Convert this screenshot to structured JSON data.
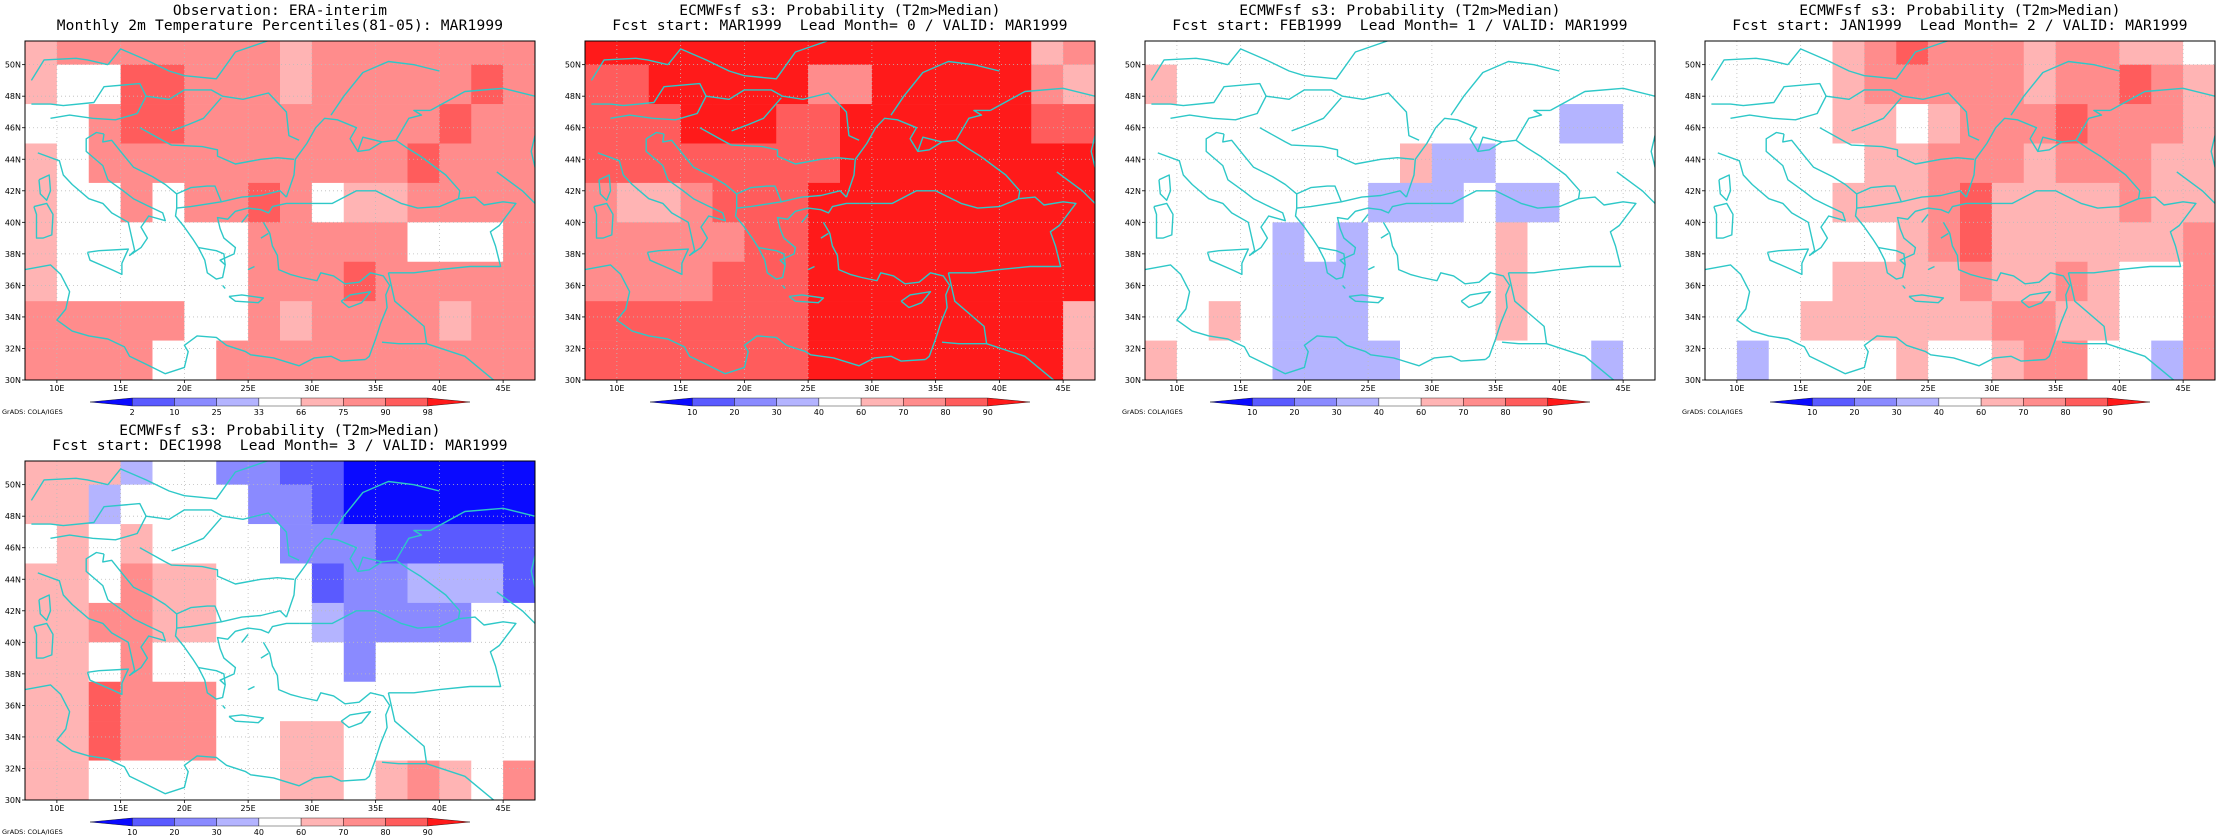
{
  "palette": {
    "coast": "#2ec8c8",
    "grid": "#bbbbbb",
    "prob_colors": [
      "#0a0aff",
      "#5a5aff",
      "#8a8aff",
      "#b4b4ff",
      "#ffffff",
      "#ffb4b4",
      "#ff8c8c",
      "#ff5c5c",
      "#ff1a1a"
    ],
    "pct_colors": [
      "#0a0aff",
      "#5a5aff",
      "#8a8aff",
      "#b4b4ff",
      "#ffffff",
      "#ffb4b4",
      "#ff8c8c",
      "#ff5c5c",
      "#ff1a1a"
    ]
  },
  "axes": {
    "lon_ticks": [
      "10E",
      "15E",
      "20E",
      "25E",
      "30E",
      "35E",
      "40E",
      "45E"
    ],
    "lat_ticks": [
      "30N",
      "32N",
      "34N",
      "36N",
      "38N",
      "40N",
      "42N",
      "44N",
      "46N",
      "48N",
      "50N"
    ]
  },
  "chart_data": [
    {
      "type": "heatmap",
      "title_line1": "Observation: ERA-interim",
      "title_line2": "Monthly 2m Temperature Percentiles(81-05): MAR1999",
      "credit": "GrADS: COLA/IGES",
      "colorbar_labels": [
        "2",
        "10",
        "25",
        "33",
        "66",
        "75",
        "90",
        "98"
      ],
      "colorbar": "pct",
      "x": [
        "8.75E",
        "11.25E",
        "13.75E",
        "16.25E",
        "18.75E",
        "21.25E",
        "23.75E",
        "26.25E",
        "28.75E",
        "31.25E",
        "33.75E",
        "36.25E",
        "38.75E",
        "41.25E",
        "43.75E",
        "46.25E"
      ],
      "y": [
        "51.25N",
        "48.75N",
        "46.25N",
        "43.75N",
        "41.25N",
        "38.75N",
        "36.25N",
        "33.75N",
        "31.25N"
      ],
      "values": [
        [
          5,
          6,
          6,
          6,
          6,
          6,
          6,
          6,
          5,
          6,
          6,
          6,
          6,
          6,
          6,
          6
        ],
        [
          5,
          4,
          4,
          7,
          7,
          6,
          6,
          6,
          5,
          6,
          6,
          6,
          6,
          6,
          7,
          6
        ],
        [
          4,
          4,
          6,
          7,
          7,
          6,
          6,
          6,
          6,
          6,
          6,
          6,
          6,
          7,
          6,
          6
        ],
        [
          5,
          4,
          6,
          6,
          6,
          6,
          6,
          6,
          6,
          6,
          6,
          6,
          7,
          6,
          6,
          6
        ],
        [
          5,
          4,
          4,
          6,
          4,
          6,
          6,
          7,
          6,
          4,
          5,
          5,
          6,
          6,
          6,
          6
        ],
        [
          5,
          4,
          4,
          4,
          4,
          4,
          4,
          6,
          6,
          6,
          6,
          6,
          4,
          4,
          4,
          6
        ],
        [
          5,
          4,
          4,
          4,
          4,
          4,
          4,
          6,
          6,
          6,
          7,
          6,
          6,
          6,
          6,
          6
        ],
        [
          6,
          6,
          6,
          6,
          6,
          4,
          4,
          6,
          5,
          6,
          6,
          6,
          6,
          5,
          6,
          6
        ],
        [
          6,
          6,
          6,
          6,
          4,
          4,
          6,
          6,
          6,
          6,
          6,
          6,
          6,
          6,
          6,
          6
        ]
      ]
    },
    {
      "type": "heatmap",
      "title_line1": "ECMWFsf s3: Probability (T2m>Median)",
      "title_line2": "Fcst start: MAR1999  Lead Month= 0 / VALID: MAR1999",
      "credit": "",
      "colorbar_labels": [
        "10",
        "20",
        "30",
        "40",
        "60",
        "70",
        "80",
        "90"
      ],
      "colorbar": "prob",
      "x": [
        "8.75E",
        "11.25E",
        "13.75E",
        "16.25E",
        "18.75E",
        "21.25E",
        "23.75E",
        "26.25E",
        "28.75E",
        "31.25E",
        "33.75E",
        "36.25E",
        "38.75E",
        "41.25E",
        "43.75E",
        "46.25E"
      ],
      "y": [
        "51.25N",
        "48.75N",
        "46.25N",
        "43.75N",
        "41.25N",
        "38.75N",
        "36.25N",
        "33.75N",
        "31.25N"
      ],
      "values": [
        [
          8,
          8,
          8,
          8,
          8,
          8,
          8,
          8,
          8,
          8,
          8,
          8,
          8,
          8,
          5,
          6
        ],
        [
          7,
          7,
          8,
          8,
          8,
          8,
          8,
          6,
          6,
          8,
          8,
          8,
          8,
          8,
          6,
          5
        ],
        [
          7,
          7,
          7,
          8,
          8,
          8,
          7,
          7,
          8,
          8,
          8,
          8,
          8,
          8,
          7,
          7
        ],
        [
          7,
          7,
          7,
          7,
          7,
          7,
          7,
          7,
          8,
          8,
          8,
          8,
          8,
          8,
          8,
          8
        ],
        [
          6,
          5,
          5,
          6,
          7,
          7,
          7,
          8,
          8,
          8,
          8,
          8,
          8,
          8,
          8,
          8
        ],
        [
          6,
          6,
          6,
          6,
          6,
          7,
          7,
          8,
          8,
          8,
          8,
          8,
          8,
          8,
          8,
          8
        ],
        [
          6,
          6,
          6,
          6,
          7,
          7,
          7,
          8,
          8,
          8,
          8,
          8,
          8,
          8,
          8,
          8
        ],
        [
          7,
          7,
          7,
          7,
          7,
          7,
          7,
          8,
          8,
          8,
          8,
          8,
          8,
          8,
          8,
          5
        ],
        [
          7,
          7,
          7,
          7,
          7,
          7,
          7,
          8,
          8,
          8,
          8,
          8,
          8,
          8,
          8,
          5
        ]
      ]
    },
    {
      "type": "heatmap",
      "title_line1": "ECMWFsf s3: Probability (T2m>Median)",
      "title_line2": "Fcst start: FEB1999  Lead Month= 1 / VALID: MAR1999",
      "credit": "GrADS: COLA/IGES",
      "colorbar_labels": [
        "10",
        "20",
        "30",
        "40",
        "60",
        "70",
        "80",
        "90"
      ],
      "colorbar": "prob",
      "x": [
        "8.75E",
        "11.25E",
        "13.75E",
        "16.25E",
        "18.75E",
        "21.25E",
        "23.75E",
        "26.25E",
        "28.75E",
        "31.25E",
        "33.75E",
        "36.25E",
        "38.75E",
        "41.25E",
        "43.75E",
        "46.25E"
      ],
      "y": [
        "51.25N",
        "48.75N",
        "46.25N",
        "43.75N",
        "41.25N",
        "38.75N",
        "36.25N",
        "33.75N",
        "31.25N"
      ],
      "values": [
        [
          4,
          4,
          4,
          4,
          4,
          4,
          4,
          4,
          4,
          4,
          4,
          4,
          4,
          4,
          4,
          4
        ],
        [
          5,
          4,
          4,
          4,
          4,
          4,
          4,
          4,
          4,
          4,
          4,
          4,
          4,
          4,
          4,
          4
        ],
        [
          4,
          4,
          4,
          4,
          4,
          4,
          4,
          4,
          4,
          4,
          4,
          4,
          4,
          3,
          3,
          4
        ],
        [
          4,
          4,
          4,
          4,
          4,
          4,
          4,
          4,
          5,
          3,
          3,
          4,
          4,
          4,
          4,
          4
        ],
        [
          4,
          4,
          4,
          4,
          4,
          4,
          4,
          3,
          3,
          3,
          4,
          3,
          3,
          4,
          4,
          4
        ],
        [
          4,
          4,
          4,
          4,
          3,
          4,
          3,
          4,
          4,
          4,
          4,
          5,
          4,
          4,
          4,
          4
        ],
        [
          4,
          4,
          4,
          4,
          3,
          3,
          3,
          4,
          4,
          4,
          4,
          5,
          4,
          4,
          4,
          4
        ],
        [
          4,
          4,
          5,
          4,
          3,
          3,
          3,
          4,
          4,
          4,
          4,
          5,
          4,
          4,
          4,
          4
        ],
        [
          5,
          4,
          4,
          4,
          3,
          3,
          3,
          3,
          4,
          4,
          4,
          4,
          4,
          4,
          3,
          4
        ]
      ]
    },
    {
      "type": "heatmap",
      "title_line1": "ECMWFsf s3: Probability (T2m>Median)",
      "title_line2": "Fcst start: JAN1999  Lead Month= 2 / VALID: MAR1999",
      "credit": "GrADS: COLA/IGES",
      "colorbar_labels": [
        "10",
        "20",
        "30",
        "40",
        "60",
        "70",
        "80",
        "90"
      ],
      "colorbar": "prob",
      "x": [
        "8.75E",
        "11.25E",
        "13.75E",
        "16.25E",
        "18.75E",
        "21.25E",
        "23.75E",
        "26.25E",
        "28.75E",
        "31.25E",
        "33.75E",
        "36.25E",
        "38.75E",
        "41.25E",
        "43.75E",
        "46.25E"
      ],
      "y": [
        "51.25N",
        "48.75N",
        "46.25N",
        "43.75N",
        "41.25N",
        "38.75N",
        "36.25N",
        "33.75N",
        "31.25N"
      ],
      "values": [
        [
          4,
          4,
          4,
          4,
          5,
          6,
          7,
          6,
          6,
          6,
          5,
          6,
          6,
          5,
          5,
          4
        ],
        [
          4,
          4,
          4,
          4,
          5,
          6,
          6,
          6,
          6,
          6,
          5,
          6,
          6,
          7,
          6,
          5
        ],
        [
          4,
          4,
          4,
          4,
          5,
          5,
          4,
          5,
          6,
          6,
          6,
          7,
          6,
          6,
          6,
          5
        ],
        [
          4,
          4,
          4,
          4,
          4,
          5,
          5,
          6,
          6,
          6,
          5,
          6,
          6,
          6,
          5,
          5
        ],
        [
          4,
          4,
          4,
          4,
          5,
          5,
          5,
          6,
          7,
          5,
          5,
          5,
          5,
          6,
          5,
          5
        ],
        [
          4,
          4,
          4,
          4,
          4,
          4,
          5,
          6,
          7,
          5,
          5,
          5,
          5,
          5,
          5,
          6
        ],
        [
          4,
          4,
          4,
          4,
          5,
          5,
          5,
          5,
          6,
          5,
          5,
          6,
          5,
          4,
          4,
          6
        ],
        [
          4,
          4,
          4,
          5,
          5,
          5,
          5,
          5,
          5,
          6,
          6,
          5,
          5,
          4,
          4,
          6
        ],
        [
          4,
          3,
          4,
          4,
          4,
          4,
          5,
          4,
          4,
          5,
          6,
          6,
          4,
          4,
          3,
          6
        ]
      ]
    },
    {
      "type": "heatmap",
      "title_line1": "ECMWFsf s3: Probability (T2m>Median)",
      "title_line2": "Fcst start: DEC1998  Lead Month= 3 / VALID: MAR1999",
      "credit": "GrADS: COLA/IGES",
      "colorbar_labels": [
        "10",
        "20",
        "30",
        "40",
        "60",
        "70",
        "80",
        "90"
      ],
      "colorbar": "prob",
      "x": [
        "8.75E",
        "11.25E",
        "13.75E",
        "16.25E",
        "18.75E",
        "21.25E",
        "23.75E",
        "26.25E",
        "28.75E",
        "31.25E",
        "33.75E",
        "36.25E",
        "38.75E",
        "41.25E",
        "43.75E",
        "46.25E"
      ],
      "y": [
        "51.25N",
        "48.75N",
        "46.25N",
        "43.75N",
        "41.25N",
        "38.75N",
        "36.25N",
        "33.75N",
        "31.25N"
      ],
      "values": [
        [
          5,
          5,
          5,
          3,
          4,
          4,
          2,
          2,
          1,
          1,
          0,
          0,
          0,
          0,
          0,
          0
        ],
        [
          5,
          5,
          3,
          4,
          4,
          4,
          4,
          2,
          2,
          1,
          0,
          0,
          0,
          0,
          0,
          0
        ],
        [
          4,
          5,
          4,
          5,
          4,
          4,
          4,
          4,
          2,
          2,
          2,
          1,
          1,
          1,
          1,
          1
        ],
        [
          5,
          5,
          4,
          6,
          5,
          5,
          4,
          4,
          4,
          1,
          2,
          2,
          3,
          3,
          3,
          1
        ],
        [
          5,
          5,
          6,
          6,
          5,
          5,
          4,
          4,
          4,
          3,
          2,
          2,
          2,
          2,
          4,
          4
        ],
        [
          5,
          5,
          4,
          6,
          4,
          4,
          4,
          4,
          4,
          4,
          2,
          4,
          4,
          4,
          4,
          4
        ],
        [
          5,
          5,
          7,
          6,
          6,
          6,
          4,
          4,
          4,
          4,
          4,
          4,
          4,
          4,
          4,
          4
        ],
        [
          5,
          5,
          7,
          6,
          6,
          6,
          4,
          4,
          5,
          5,
          4,
          4,
          4,
          4,
          4,
          4
        ],
        [
          5,
          5,
          4,
          4,
          4,
          4,
          4,
          4,
          5,
          5,
          4,
          5,
          6,
          5,
          4,
          6
        ]
      ]
    }
  ]
}
